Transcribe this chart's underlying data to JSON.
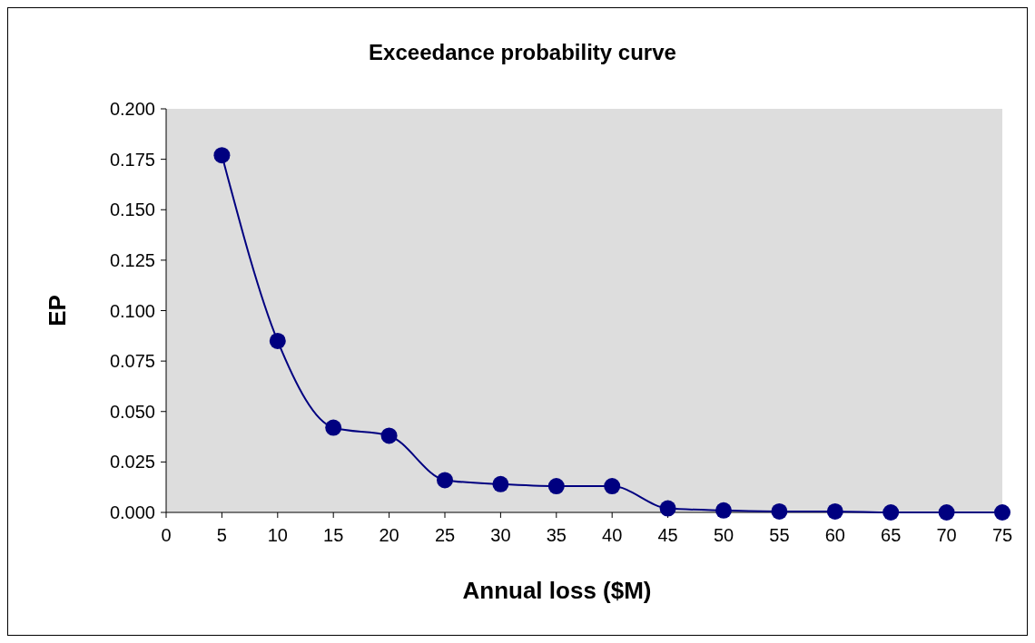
{
  "chart_data": {
    "type": "line",
    "title": "Exceedance probability curve",
    "xlabel": "Annual loss ($M)",
    "ylabel": "EP",
    "x": [
      5,
      10,
      15,
      20,
      25,
      30,
      35,
      40,
      45,
      50,
      55,
      60,
      65,
      70,
      75
    ],
    "series": [
      {
        "color": "#000080",
        "values": [
          0.177,
          0.085,
          0.042,
          0.038,
          0.016,
          0.014,
          0.013,
          0.013,
          0.002,
          0.001,
          0.0005,
          0.0005,
          0,
          0,
          0
        ]
      }
    ],
    "xlim": [
      0,
      75
    ],
    "xticks": [
      0,
      5,
      10,
      15,
      20,
      25,
      30,
      35,
      40,
      45,
      50,
      55,
      60,
      65,
      70,
      75
    ],
    "ylim": [
      0,
      0.2
    ],
    "yticks": [
      {
        "value": 0,
        "label": "0.000"
      },
      {
        "value": 0.025,
        "label": "0.025"
      },
      {
        "value": 0.05,
        "label": "0.050"
      },
      {
        "value": 0.075,
        "label": "0.075"
      },
      {
        "value": 0.1,
        "label": "0.100"
      },
      {
        "value": 0.125,
        "label": "0.125"
      },
      {
        "value": 0.15,
        "label": "0.150"
      },
      {
        "value": 0.175,
        "label": "0.175"
      },
      {
        "value": 0.2,
        "label": "0.200"
      }
    ],
    "grid": false,
    "marker": "circle",
    "line_style": "solid"
  }
}
